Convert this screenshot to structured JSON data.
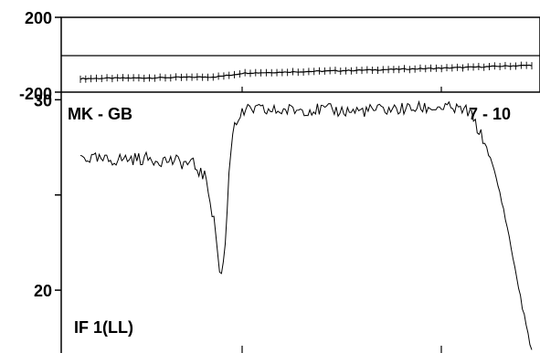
{
  "chart_data": [
    {
      "type": "line",
      "panel": "phase",
      "yticks": [
        200,
        -200
      ],
      "ylim": [
        -200,
        200
      ],
      "reference_line": 0,
      "x": [
        0,
        0.05,
        0.1,
        0.15,
        0.2,
        0.25,
        0.3,
        0.33,
        0.36,
        0.4,
        0.45,
        0.5,
        0.55,
        0.6,
        0.65,
        0.7,
        0.75,
        0.8,
        0.85,
        0.9,
        0.95,
        1.0
      ],
      "values": [
        -128,
        -126,
        -125,
        -124,
        -122,
        -120,
        -118,
        -110,
        -98,
        -96,
        -93,
        -90,
        -87,
        -84,
        -81,
        -78,
        -75,
        -72,
        -68,
        -64,
        -60,
        -56
      ],
      "marker": "+"
    },
    {
      "type": "line",
      "panel": "amplitude",
      "yticks": [
        30,
        20
      ],
      "ylim": [
        16.7,
        30.4
      ],
      "x": [
        0,
        0.05,
        0.1,
        0.15,
        0.2,
        0.25,
        0.28,
        0.3,
        0.31,
        0.32,
        0.33,
        0.34,
        0.36,
        0.38,
        0.42,
        0.5,
        0.6,
        0.7,
        0.8,
        0.86,
        0.88,
        0.9,
        0.92,
        0.94,
        0.96,
        0.98,
        1.0
      ],
      "values": [
        27.0,
        26.8,
        26.9,
        26.9,
        26.8,
        26.6,
        25.8,
        23.0,
        20.5,
        22.0,
        26.5,
        28.8,
        29.3,
        29.5,
        29.4,
        29.5,
        29.4,
        29.5,
        29.6,
        29.4,
        28.5,
        27.5,
        26.0,
        24.0,
        21.5,
        19.0,
        16.8
      ],
      "labels": {
        "baseline": "MK - GB",
        "channel": "IF 1(LL)",
        "time": "7 - 10"
      }
    }
  ]
}
